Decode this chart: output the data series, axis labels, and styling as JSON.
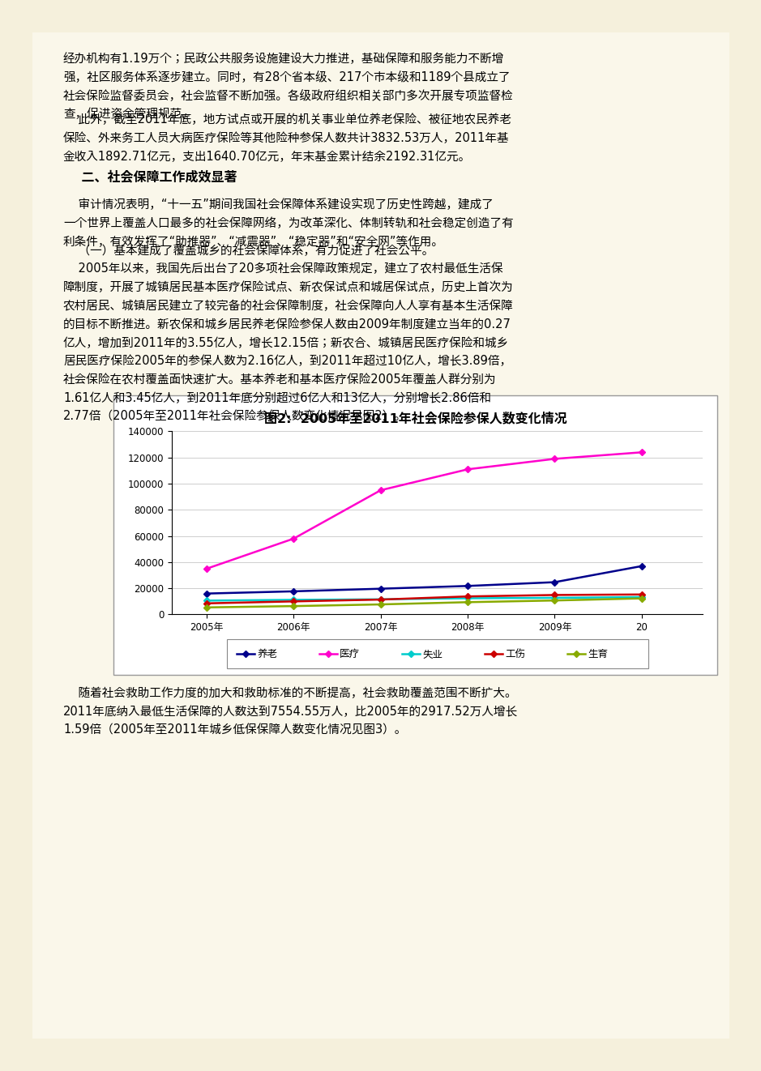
{
  "page_bg": "#f5f0dc",
  "content_bg": "#faf7ea",
  "title_chart": "图2:  2005年至2011年社会保险参保人数变化情况",
  "years": [
    "2005年",
    "2006年",
    "2007年",
    "2008年",
    "2009年",
    "20"
  ],
  "years_numeric": [
    2005,
    2006,
    2007,
    2008,
    2009,
    2010
  ],
  "pension_values": [
    16000,
    17700,
    19700,
    21800,
    24700,
    37000
  ],
  "medical_values": [
    35000,
    58000,
    95000,
    111000,
    119000,
    124000
  ],
  "unemployment_values": [
    10600,
    11200,
    11600,
    12400,
    12700,
    13300
  ],
  "injury_values": [
    8500,
    10000,
    11400,
    13800,
    14900,
    15300
  ],
  "maternity_values": [
    5400,
    6400,
    7700,
    9400,
    10700,
    12300
  ],
  "pension_color": "#00008B",
  "medical_color": "#FF00CC",
  "unemployment_color": "#00CCCC",
  "injury_color": "#CC0000",
  "maternity_color": "#88AA00",
  "ylim": [
    0,
    140000
  ],
  "yticks": [
    0,
    20000,
    40000,
    60000,
    80000,
    100000,
    120000,
    140000
  ]
}
